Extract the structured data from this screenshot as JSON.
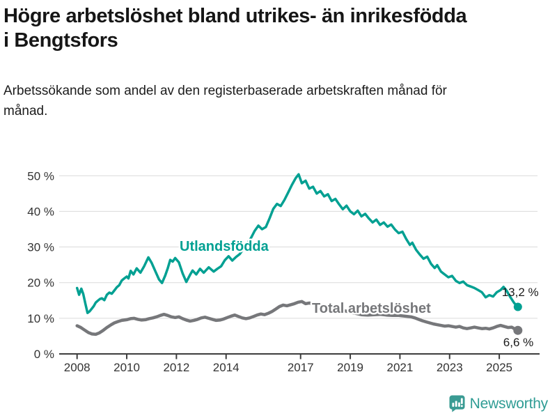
{
  "header": {
    "title": "Högre arbetslöshet bland utrikes- än inrikesfödda i Bengtsfors",
    "subtitle": "Arbetssökande som andel av den registerbaserade arbetskraften månad för månad."
  },
  "footer": {
    "brand": "Newsworthy",
    "brand_color": "#2f9c94",
    "icon_color": "#3a9b93"
  },
  "chart_data": {
    "type": "line",
    "title": "Högre arbetslöshet bland utrikes- än inrikesfödda i Bengtsfors",
    "subtitle": "Arbetssökande som andel av den registerbaserade arbetskraften månad för månad.",
    "x_ticks": [
      2008,
      2010,
      2012,
      2014,
      2017,
      2019,
      2021,
      2023,
      2025
    ],
    "y_ticks": [
      0,
      10,
      20,
      30,
      40,
      50
    ],
    "y_tick_suffix": " %",
    "xlim": [
      2007.3,
      2026.6
    ],
    "ylim": [
      0,
      52
    ],
    "grid": true,
    "legend_position": "inline-labels",
    "colors": {
      "grid": "#dadada",
      "axis": "#3d3d3d",
      "tick_text": "#333333"
    },
    "series": [
      {
        "id": "utlandsfodda",
        "name": "Utlandsfödda",
        "color": "#00a092",
        "width": 3.5,
        "dot_radius": 6,
        "label_pos": [
          2013.92,
          28.9
        ],
        "end_label": "13,2 %",
        "end_label_pos": [
          2025.1,
          16.2
        ],
        "end_value": 13.2,
        "points": [
          [
            2008.0,
            18.5
          ],
          [
            2008.08,
            16.6
          ],
          [
            2008.17,
            18.3
          ],
          [
            2008.25,
            16.8
          ],
          [
            2008.33,
            14.2
          ],
          [
            2008.42,
            11.5
          ],
          [
            2008.5,
            11.9
          ],
          [
            2008.58,
            12.6
          ],
          [
            2008.67,
            13.4
          ],
          [
            2008.75,
            14.4
          ],
          [
            2008.83,
            14.9
          ],
          [
            2008.92,
            15.4
          ],
          [
            2009.0,
            15.6
          ],
          [
            2009.1,
            15.1
          ],
          [
            2009.2,
            16.6
          ],
          [
            2009.3,
            17.2
          ],
          [
            2009.4,
            16.9
          ],
          [
            2009.5,
            17.8
          ],
          [
            2009.6,
            18.7
          ],
          [
            2009.7,
            19.3
          ],
          [
            2009.8,
            20.6
          ],
          [
            2009.9,
            21.2
          ],
          [
            2010.0,
            21.7
          ],
          [
            2010.07,
            21.2
          ],
          [
            2010.16,
            23.3
          ],
          [
            2010.27,
            22.3
          ],
          [
            2010.4,
            24.0
          ],
          [
            2010.55,
            22.8
          ],
          [
            2010.7,
            24.6
          ],
          [
            2010.87,
            27.1
          ],
          [
            2011.0,
            25.6
          ],
          [
            2011.15,
            23.2
          ],
          [
            2011.3,
            20.9
          ],
          [
            2011.42,
            19.9
          ],
          [
            2011.55,
            22.0
          ],
          [
            2011.65,
            24.0
          ],
          [
            2011.75,
            26.4
          ],
          [
            2011.85,
            25.9
          ],
          [
            2011.95,
            26.9
          ],
          [
            2012.1,
            25.7
          ],
          [
            2012.25,
            22.6
          ],
          [
            2012.4,
            20.2
          ],
          [
            2012.55,
            22.2
          ],
          [
            2012.65,
            23.4
          ],
          [
            2012.8,
            22.3
          ],
          [
            2012.95,
            23.9
          ],
          [
            2013.1,
            22.8
          ],
          [
            2013.3,
            24.3
          ],
          [
            2013.5,
            23.1
          ],
          [
            2013.65,
            23.9
          ],
          [
            2013.8,
            24.6
          ],
          [
            2013.95,
            26.3
          ],
          [
            2014.1,
            27.4
          ],
          [
            2014.25,
            26.2
          ],
          [
            2014.4,
            27.2
          ],
          [
            2014.55,
            28.0
          ],
          [
            2014.7,
            29.5
          ],
          [
            2014.85,
            31.0
          ],
          [
            2015.0,
            32.5
          ],
          [
            2015.15,
            34.5
          ],
          [
            2015.3,
            36.0
          ],
          [
            2015.45,
            35.0
          ],
          [
            2015.6,
            35.6
          ],
          [
            2015.75,
            38.0
          ],
          [
            2015.9,
            40.7
          ],
          [
            2016.05,
            42.1
          ],
          [
            2016.2,
            41.5
          ],
          [
            2016.35,
            43.2
          ],
          [
            2016.5,
            45.3
          ],
          [
            2016.65,
            47.4
          ],
          [
            2016.8,
            49.3
          ],
          [
            2016.92,
            50.4
          ],
          [
            2017.05,
            47.9
          ],
          [
            2017.2,
            48.6
          ],
          [
            2017.35,
            46.4
          ],
          [
            2017.5,
            46.9
          ],
          [
            2017.65,
            45.0
          ],
          [
            2017.8,
            45.7
          ],
          [
            2017.95,
            44.2
          ],
          [
            2018.1,
            44.8
          ],
          [
            2018.25,
            42.9
          ],
          [
            2018.4,
            43.5
          ],
          [
            2018.55,
            42.0
          ],
          [
            2018.7,
            40.6
          ],
          [
            2018.85,
            41.6
          ],
          [
            2019.0,
            40.0
          ],
          [
            2019.15,
            39.2
          ],
          [
            2019.3,
            40.2
          ],
          [
            2019.45,
            38.6
          ],
          [
            2019.6,
            39.3
          ],
          [
            2019.75,
            38.0
          ],
          [
            2019.9,
            36.9
          ],
          [
            2020.05,
            37.7
          ],
          [
            2020.2,
            36.2
          ],
          [
            2020.35,
            36.9
          ],
          [
            2020.5,
            35.7
          ],
          [
            2020.65,
            36.3
          ],
          [
            2020.8,
            34.9
          ],
          [
            2020.95,
            33.9
          ],
          [
            2021.1,
            34.3
          ],
          [
            2021.25,
            32.3
          ],
          [
            2021.4,
            30.6
          ],
          [
            2021.5,
            31.2
          ],
          [
            2021.65,
            29.2
          ],
          [
            2021.8,
            27.9
          ],
          [
            2021.95,
            26.7
          ],
          [
            2022.1,
            27.3
          ],
          [
            2022.25,
            25.3
          ],
          [
            2022.4,
            24.1
          ],
          [
            2022.5,
            24.9
          ],
          [
            2022.65,
            23.1
          ],
          [
            2022.8,
            22.3
          ],
          [
            2022.95,
            21.5
          ],
          [
            2023.1,
            21.9
          ],
          [
            2023.25,
            20.5
          ],
          [
            2023.4,
            19.9
          ],
          [
            2023.55,
            20.3
          ],
          [
            2023.7,
            19.3
          ],
          [
            2023.85,
            18.9
          ],
          [
            2024.0,
            18.5
          ],
          [
            2024.15,
            17.9
          ],
          [
            2024.3,
            17.3
          ],
          [
            2024.45,
            15.9
          ],
          [
            2024.6,
            16.5
          ],
          [
            2024.75,
            16.1
          ],
          [
            2024.9,
            17.3
          ],
          [
            2025.05,
            17.9
          ],
          [
            2025.17,
            18.8
          ],
          [
            2025.3,
            17.7
          ],
          [
            2025.45,
            15.9
          ],
          [
            2025.6,
            14.3
          ],
          [
            2025.75,
            13.2
          ]
        ]
      },
      {
        "id": "total",
        "name": "Total arbetslöshet",
        "color": "#76777a",
        "width": 4.5,
        "dot_radius": 6.5,
        "label_pos": [
          2019.85,
          11.5
        ],
        "end_label": "6,6 %",
        "end_label_pos": [
          2025.16,
          2.15
        ],
        "end_value": 6.6,
        "points": [
          [
            2008.0,
            7.9
          ],
          [
            2008.15,
            7.4
          ],
          [
            2008.3,
            6.7
          ],
          [
            2008.45,
            6.0
          ],
          [
            2008.6,
            5.6
          ],
          [
            2008.75,
            5.5
          ],
          [
            2008.9,
            5.9
          ],
          [
            2009.05,
            6.6
          ],
          [
            2009.2,
            7.4
          ],
          [
            2009.35,
            8.1
          ],
          [
            2009.5,
            8.7
          ],
          [
            2009.65,
            9.1
          ],
          [
            2009.8,
            9.4
          ],
          [
            2010.0,
            9.6
          ],
          [
            2010.15,
            9.9
          ],
          [
            2010.3,
            10.0
          ],
          [
            2010.45,
            9.7
          ],
          [
            2010.6,
            9.5
          ],
          [
            2010.75,
            9.6
          ],
          [
            2010.9,
            9.9
          ],
          [
            2011.05,
            10.1
          ],
          [
            2011.2,
            10.4
          ],
          [
            2011.35,
            10.8
          ],
          [
            2011.5,
            11.1
          ],
          [
            2011.65,
            10.8
          ],
          [
            2011.8,
            10.4
          ],
          [
            2011.95,
            10.2
          ],
          [
            2012.1,
            10.4
          ],
          [
            2012.25,
            9.9
          ],
          [
            2012.4,
            9.5
          ],
          [
            2012.55,
            9.2
          ],
          [
            2012.7,
            9.4
          ],
          [
            2012.85,
            9.7
          ],
          [
            2013.0,
            10.1
          ],
          [
            2013.15,
            10.3
          ],
          [
            2013.3,
            10.0
          ],
          [
            2013.45,
            9.7
          ],
          [
            2013.6,
            9.4
          ],
          [
            2013.75,
            9.5
          ],
          [
            2013.9,
            9.8
          ],
          [
            2014.05,
            10.2
          ],
          [
            2014.2,
            10.6
          ],
          [
            2014.35,
            10.9
          ],
          [
            2014.5,
            10.5
          ],
          [
            2014.65,
            10.1
          ],
          [
            2014.8,
            9.9
          ],
          [
            2014.95,
            10.1
          ],
          [
            2015.1,
            10.5
          ],
          [
            2015.25,
            10.9
          ],
          [
            2015.4,
            11.2
          ],
          [
            2015.55,
            11.0
          ],
          [
            2015.7,
            11.4
          ],
          [
            2015.85,
            11.9
          ],
          [
            2016.0,
            12.6
          ],
          [
            2016.15,
            13.3
          ],
          [
            2016.3,
            13.7
          ],
          [
            2016.45,
            13.5
          ],
          [
            2016.6,
            13.8
          ],
          [
            2016.75,
            14.1
          ],
          [
            2016.9,
            14.5
          ],
          [
            2017.05,
            14.7
          ],
          [
            2017.2,
            14.1
          ],
          [
            2017.35,
            14.3
          ],
          [
            2017.55,
            13.9
          ],
          [
            2017.75,
            13.5
          ],
          [
            2017.95,
            13.2
          ],
          [
            2018.2,
            12.9
          ],
          [
            2018.45,
            12.6
          ],
          [
            2018.7,
            12.2
          ],
          [
            2018.95,
            11.8
          ],
          [
            2019.2,
            11.4
          ],
          [
            2019.45,
            11.0
          ],
          [
            2019.7,
            10.9
          ],
          [
            2019.95,
            11.0
          ],
          [
            2020.2,
            11.1
          ],
          [
            2020.45,
            10.9
          ],
          [
            2020.7,
            10.8
          ],
          [
            2020.95,
            10.8
          ],
          [
            2021.2,
            10.6
          ],
          [
            2021.45,
            10.4
          ],
          [
            2021.6,
            10.1
          ],
          [
            2021.75,
            9.7
          ],
          [
            2021.9,
            9.3
          ],
          [
            2022.05,
            9.0
          ],
          [
            2022.2,
            8.7
          ],
          [
            2022.35,
            8.4
          ],
          [
            2022.5,
            8.2
          ],
          [
            2022.65,
            8.0
          ],
          [
            2022.8,
            7.8
          ],
          [
            2022.95,
            7.9
          ],
          [
            2023.1,
            7.7
          ],
          [
            2023.25,
            7.5
          ],
          [
            2023.4,
            7.7
          ],
          [
            2023.55,
            7.3
          ],
          [
            2023.7,
            7.1
          ],
          [
            2023.85,
            7.3
          ],
          [
            2024.0,
            7.5
          ],
          [
            2024.15,
            7.3
          ],
          [
            2024.3,
            7.1
          ],
          [
            2024.45,
            7.2
          ],
          [
            2024.6,
            7.0
          ],
          [
            2024.75,
            7.3
          ],
          [
            2024.9,
            7.7
          ],
          [
            2025.05,
            8.0
          ],
          [
            2025.2,
            7.7
          ],
          [
            2025.35,
            7.4
          ],
          [
            2025.5,
            7.5
          ],
          [
            2025.6,
            7.1
          ],
          [
            2025.75,
            6.6
          ]
        ]
      }
    ]
  }
}
